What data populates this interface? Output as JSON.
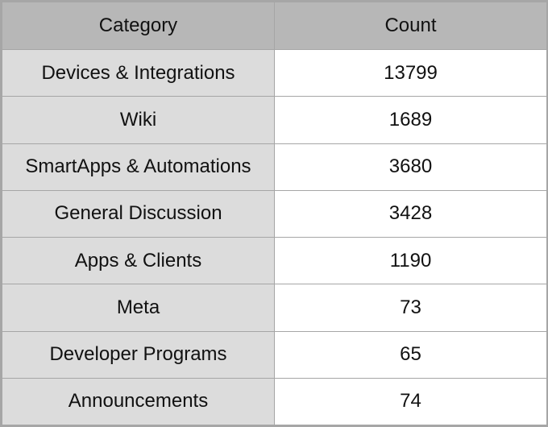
{
  "chart_data": {
    "type": "table",
    "columns": [
      "Category",
      "Count"
    ],
    "rows": [
      {
        "category": "Devices & Integrations",
        "count": 13799
      },
      {
        "category": "Wiki",
        "count": 1689
      },
      {
        "category": "SmartApps & Automations",
        "count": 3680
      },
      {
        "category": "General Discussion",
        "count": 3428
      },
      {
        "category": "Apps & Clients",
        "count": 1190
      },
      {
        "category": "Meta",
        "count": 73
      },
      {
        "category": "Developer Programs",
        "count": 65
      },
      {
        "category": "Announcements",
        "count": 74
      }
    ]
  },
  "colors": {
    "header_bg": "#b7b7b7",
    "category_bg": "#dcdcdc",
    "value_bg": "#ffffff",
    "border": "#a6a6a6"
  }
}
